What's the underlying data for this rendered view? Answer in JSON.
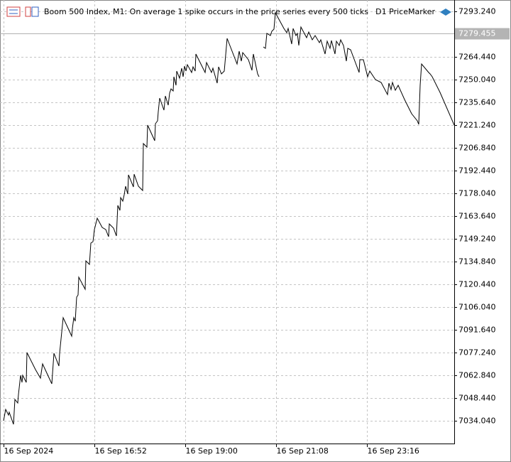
{
  "chart_data": {
    "type": "line",
    "title": "Boom 500 Index, M1:  On average 1 spike occurs in the price series every 500 ticks",
    "indicator": "D1 PriceMarker",
    "xlim": [
      "16 Sep 14:39",
      "17 Sep 01:19"
    ],
    "xticks": [
      {
        "value": "16 Sep 14:44",
        "label": "16 Sep 2024"
      },
      "16 Sep 16:52",
      "16 Sep 19:00",
      "16 Sep 21:08",
      "16 Sep 23:16"
    ],
    "ylim": [
      7019.64,
      7300.44
    ],
    "yticks": [
      {
        "value": 7034.04,
        "label": "7034.040"
      },
      {
        "value": 7048.44,
        "label": "7048.440"
      },
      {
        "value": 7062.84,
        "label": "7062.840"
      },
      {
        "value": 7077.24,
        "label": "7077.240"
      },
      {
        "value": 7091.64,
        "label": "7091.640"
      },
      {
        "value": 7106.04,
        "label": "7106.040"
      },
      {
        "value": 7120.44,
        "label": "7120.440"
      },
      {
        "value": 7134.84,
        "label": "7134.840"
      },
      {
        "value": 7149.24,
        "label": "7149.240"
      },
      {
        "value": 7163.64,
        "label": "7163.640"
      },
      {
        "value": 7178.04,
        "label": "7178.040"
      },
      {
        "value": 7192.44,
        "label": "7192.440"
      },
      {
        "value": 7206.84,
        "label": "7206.840"
      },
      {
        "value": 7221.24,
        "label": "7221.240"
      },
      {
        "value": 7235.64,
        "label": "7235.640"
      },
      {
        "value": 7250.04,
        "label": "7250.040"
      },
      {
        "value": 7264.44,
        "label": "7264.440"
      },
      {
        "value": 7293.24,
        "label": "7293.240"
      }
    ],
    "grid": true,
    "price_line": 7279.455,
    "x": [
      "16 Sep 14:44",
      "16 Sep 14:47",
      "16 Sep 14:51",
      "16 Sep 14:52",
      "16 Sep 14:58",
      "16 Sep 15:00",
      "16 Sep 15:04",
      "16 Sep 15:05",
      "16 Sep 15:08",
      "16 Sep 15:10",
      "16 Sep 15:11",
      "16 Sep 15:16",
      "16 Sep 15:17",
      "16 Sep 15:29",
      "16 Sep 15:36",
      "16 Sep 15:39",
      "16 Sep 15:52",
      "16 Sep 15:55",
      "16 Sep 16:02",
      "16 Sep 16:03",
      "16 Sep 16:08",
      "16 Sep 16:15",
      "16 Sep 16:20",
      "16 Sep 16:21",
      "16 Sep 16:23",
      "16 Sep 16:25",
      "16 Sep 16:27",
      "16 Sep 16:29",
      "16 Sep 16:30",
      "16 Sep 16:39",
      "16 Sep 16:40",
      "16 Sep 16:45",
      "16 Sep 16:47",
      "16 Sep 16:50",
      "16 Sep 16:52",
      "16 Sep 16:56",
      "16 Sep 17:03",
      "16 Sep 17:08",
      "16 Sep 17:12",
      "16 Sep 17:13",
      "16 Sep 17:19",
      "16 Sep 17:23",
      "16 Sep 17:25",
      "16 Sep 17:28",
      "16 Sep 17:29",
      "16 Sep 17:32",
      "16 Sep 17:34",
      "16 Sep 17:36",
      "16 Sep 17:39",
      "16 Sep 17:40",
      "16 Sep 17:47",
      "16 Sep 17:48",
      "16 Sep 17:54",
      "16 Sep 18:00",
      "16 Sep 18:01",
      "16 Sep 18:06",
      "16 Sep 18:07",
      "16 Sep 18:17",
      "16 Sep 18:18",
      "16 Sep 18:21",
      "16 Sep 18:22",
      "16 Sep 18:24",
      "16 Sep 18:30",
      "16 Sep 18:32",
      "16 Sep 18:36",
      "16 Sep 18:38",
      "16 Sep 18:40",
      "16 Sep 18:43",
      "16 Sep 18:44",
      "16 Sep 18:47",
      "16 Sep 18:48",
      "16 Sep 18:52",
      "16 Sep 18:55",
      "16 Sep 18:57",
      "16 Sep 18:59",
      "16 Sep 19:01",
      "16 Sep 19:03",
      "16 Sep 19:09",
      "16 Sep 19:11",
      "16 Sep 19:14",
      "16 Sep 19:15",
      "16 Sep 19:28",
      "16 Sep 19:30",
      "16 Sep 19:37",
      "16 Sep 19:39",
      "16 Sep 19:45",
      "16 Sep 19:47",
      "16 Sep 19:51",
      "16 Sep 19:55",
      "16 Sep 19:59",
      "16 Sep 20:13",
      "16 Sep 20:16",
      "16 Sep 20:19",
      "16 Sep 20:21",
      "16 Sep 20:29",
      "16 Sep 20:34",
      "16 Sep 20:36",
      "16 Sep 20:42",
      "16 Sep 20:44",
      "16 Sep 20:47",
      "16 Sep 20:50",
      "16 Sep 20:53",
      "16 Sep 20:55",
      "16 Sep 21:00",
      "16 Sep 21:02",
      "16 Sep 21:05",
      "16 Sep 21:07",
      "16 Sep 21:19",
      "16 Sep 21:23",
      "16 Sep 21:25",
      "16 Sep 21:30",
      "16 Sep 21:32",
      "16 Sep 21:36",
      "16 Sep 21:38",
      "16 Sep 21:40",
      "16 Sep 21:43",
      "16 Sep 21:51",
      "16 Sep 21:54",
      "16 Sep 21:59",
      "16 Sep 22:03",
      "16 Sep 22:09",
      "16 Sep 22:11",
      "16 Sep 22:17",
      "16 Sep 22:20",
      "16 Sep 22:24",
      "16 Sep 22:26",
      "16 Sep 22:31",
      "16 Sep 22:33",
      "16 Sep 22:37",
      "16 Sep 22:39",
      "16 Sep 22:43",
      "16 Sep 22:47",
      "16 Sep 22:49",
      "16 Sep 22:53",
      "16 Sep 23:05",
      "16 Sep 23:06",
      "16 Sep 23:11",
      "16 Sep 23:15",
      "16 Sep 23:17",
      "16 Sep 23:20",
      "16 Sep 23:28",
      "16 Sep 23:36",
      "16 Sep 23:45",
      "16 Sep 23:47",
      "16 Sep 23:50",
      "16 Sep 23:52",
      "16 Sep 23:56",
      "17 Sep 00:00",
      "17 Sep 00:09",
      "17 Sep 00:19",
      "17 Sep 00:27",
      "17 Sep 00:29",
      "17 Sep 00:31",
      "17 Sep 00:33",
      "17 Sep 00:43",
      "17 Sep 00:45",
      "17 Sep 00:48",
      "17 Sep 00:59",
      "17 Sep 01:19"
    ],
    "series": [
      {
        "name": "Boom 500 Index",
        "color": "#000000",
        "values": [
          7034.04,
          7041.24,
          7037.64,
          7039.44,
          7031.79,
          7047.54,
          7045.29,
          7050.69,
          7062.84,
          7058.34,
          7062.84,
          7058.34,
          7077.24,
          7066.44,
          7061.04,
          7070.04,
          7057.44,
          7076.79,
          7068.69,
          7076.79,
          7099.29,
          7092.54,
          7087.59,
          7092.54,
          7099.29,
          7097.04,
          7112.34,
          7113.69,
          7124.94,
          7117.29,
          7135.29,
          7133.04,
          7146.54,
          7147.44,
          7155.09,
          7162.29,
          7156.44,
          7155.09,
          7150.59,
          7158.69,
          7155.99,
          7151.04,
          7170.39,
          7167.24,
          7175.34,
          7173.09,
          7177.14,
          7182.54,
          7177.59,
          7189.74,
          7182.09,
          7190.19,
          7182.54,
          7179.84,
          7209.54,
          7207.29,
          7221.24,
          7211.34,
          7222.14,
          7223.94,
          7229.79,
          7238.34,
          7230.69,
          7239.69,
          7233.84,
          7241.49,
          7244.19,
          7242.84,
          7251.84,
          7246.44,
          7255.44,
          7250.94,
          7257.24,
          7251.84,
          7258.59,
          7255.44,
          7259.49,
          7254.54,
          7258.14,
          7255.44,
          7266.24,
          7254.54,
          7260.84,
          7254.54,
          7257.24,
          7247.79,
          7258.14,
          7253.64,
          7255.44,
          7276.14,
          7259.94,
          7268.04,
          7261.74,
          7267.14,
          7262.64,
          7255.89,
          7266.24,
          7253.64,
          7251.84,
          null,
          7270.74,
          7269.84,
          7279.29,
          7277.94,
          7280.64,
          7281.99,
          7292.34,
          7282.44,
          7279.74,
          7282.44,
          7272.54,
          7282.44,
          7277.94,
          7279.29,
          7271.64,
          7283.34,
          7276.59,
          7280.19,
          7275.24,
          7277.94,
          7273.44,
          7275.24,
          7266.24,
          7274.34,
          7269.84,
          7274.79,
          7266.24,
          7274.34,
          7271.64,
          7275.24,
          7271.64,
          7261.74,
          7269.84,
          7268.94,
          7254.54,
          7262.64,
          7262.64,
          7255.44,
          7251.84,
          7255.44,
          7250.04,
          7248.24,
          7240.59,
          7247.79,
          7243.74,
          7248.24,
          7243.29,
          7246.44,
          7237.44,
          7228.44,
          7223.94,
          7221.69,
          7246.44,
          7259.94,
          7254.54,
          7253.64,
          7251.84,
          7241.94,
          7221.24
        ]
      }
    ]
  }
}
